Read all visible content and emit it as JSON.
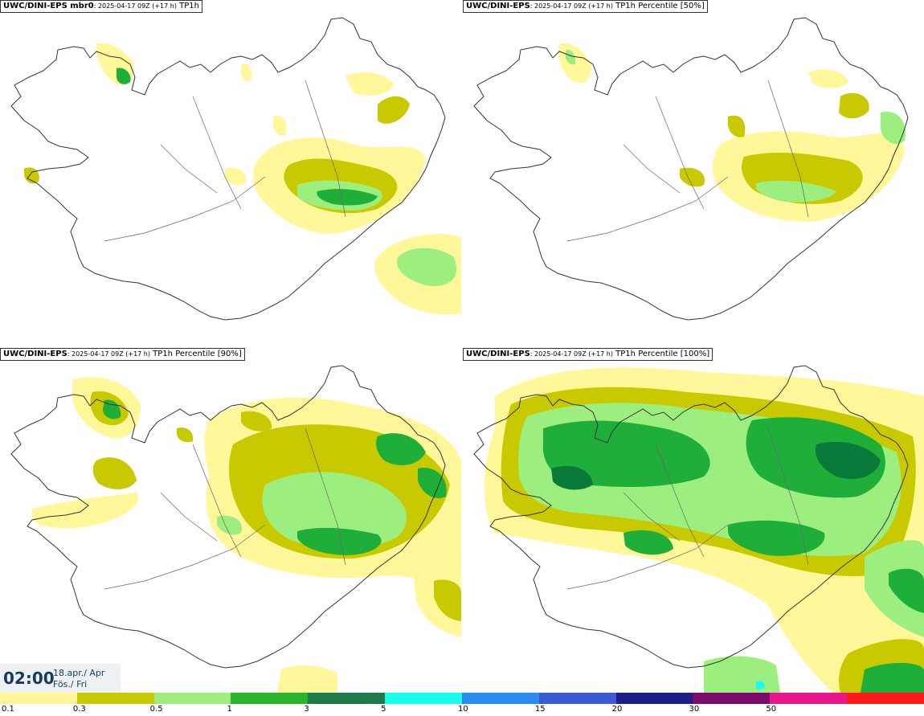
{
  "panels": [
    {
      "model": "UWC/DINI-EPS mbr0",
      "meta": ": 2025-04-17 09Z (+17 h)",
      "field": "TP1h"
    },
    {
      "model": "UWC/DINI-EPS",
      "meta": ": 2025-04-17 09Z (+17 h)",
      "field": "TP1h Percentile [50%]"
    },
    {
      "model": "UWC/DINI-EPS",
      "meta": ": 2025-04-17 09Z (+17 h)",
      "field": "TP1h Percentile [90%]"
    },
    {
      "model": "UWC/DINI-EPS",
      "meta": ": 2025-04-17 09Z (+17 h)",
      "field": "TP1h Percentile [100%]"
    }
  ],
  "clock": {
    "time": "02:00",
    "date_line1": "18.apr./ Apr",
    "date_line2": "Fös./ Fri"
  },
  "legend": {
    "colors": [
      "#fff799",
      "#c9c900",
      "#9cef7f",
      "#2bb52b",
      "#1e7a4a",
      "#19ffef",
      "#2a8cf2",
      "#3b5bd6",
      "#1c1c8a",
      "#7a0b6a",
      "#e8188c",
      "#ff1a1a"
    ],
    "labels": [
      "0.1",
      "0.3",
      "0.5",
      "1",
      "3",
      "5",
      "10",
      "15",
      "20",
      "30",
      "50"
    ]
  },
  "colors": {
    "light_yellow": "#fff799",
    "olive": "#c9c900",
    "light_green": "#9cef7f",
    "green": "#1fae3a",
    "dark_green": "#0a7a3a",
    "coast": "#333333"
  }
}
